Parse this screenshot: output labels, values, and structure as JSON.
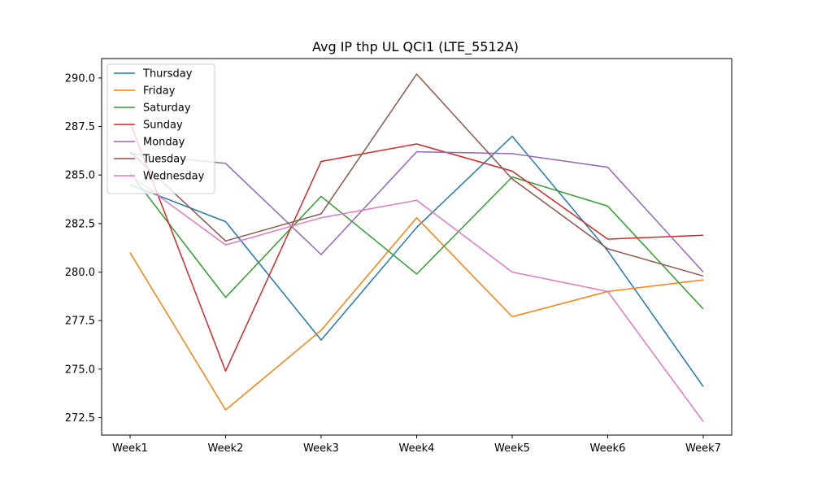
{
  "chart_data": {
    "type": "line",
    "title": "Avg IP thp UL QCI1 (LTE_5512A)",
    "xlabel": "",
    "ylabel": "",
    "categories": [
      "Week1",
      "Week2",
      "Week3",
      "Week4",
      "Week5",
      "Week6",
      "Week7"
    ],
    "ylim": [
      271.6,
      291.0
    ],
    "yticks": [
      "272.5",
      "275.0",
      "277.5",
      "280.0",
      "282.5",
      "285.0",
      "287.5",
      "290.0"
    ],
    "grid": false,
    "legend_position": "top-left",
    "series": [
      {
        "name": "Thursday",
        "color": "#1f77b4",
        "values": [
          284.5,
          282.6,
          276.5,
          282.3,
          287.0,
          281.1,
          274.1
        ]
      },
      {
        "name": "Friday",
        "color": "#ff7f0e",
        "values": [
          281.0,
          272.9,
          277.0,
          282.8,
          277.7,
          279.0,
          279.6
        ]
      },
      {
        "name": "Saturday",
        "color": "#2ca02c",
        "values": [
          285.1,
          278.7,
          283.9,
          279.9,
          284.9,
          283.4,
          278.1
        ]
      },
      {
        "name": "Sunday",
        "color": "#d62728",
        "values": [
          287.7,
          274.9,
          285.7,
          286.6,
          285.2,
          281.7,
          281.9
        ]
      },
      {
        "name": "Monday",
        "color": "#9467bd",
        "values": [
          286.1,
          285.6,
          280.9,
          286.2,
          286.1,
          285.4,
          280.0
        ]
      },
      {
        "name": "Tuesday",
        "color": "#8c564b",
        "values": [
          286.2,
          281.6,
          283.0,
          290.2,
          284.8,
          281.2,
          279.8
        ]
      },
      {
        "name": "Wednesday",
        "color": "#e377c2",
        "values": [
          285.0,
          281.4,
          282.8,
          283.7,
          280.0,
          279.0,
          272.3
        ]
      }
    ]
  }
}
